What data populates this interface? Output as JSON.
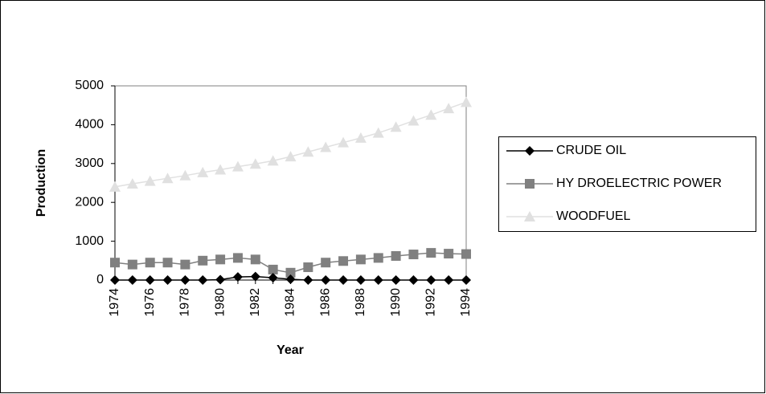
{
  "chart_data": {
    "type": "line",
    "x_label": "Year",
    "y_label": "Production",
    "x": [
      1974,
      1975,
      1976,
      1977,
      1978,
      1979,
      1980,
      1981,
      1982,
      1983,
      1984,
      1985,
      1986,
      1987,
      1988,
      1989,
      1990,
      1991,
      1992,
      1993,
      1994
    ],
    "xlim": [
      1974,
      1994
    ],
    "xticks": [
      1974,
      1976,
      1978,
      1980,
      1982,
      1984,
      1986,
      1988,
      1990,
      1992,
      1994
    ],
    "ylim": [
      0,
      5000
    ],
    "yticks": [
      0,
      1000,
      2000,
      3000,
      4000,
      5000
    ],
    "legend": "right",
    "series": [
      {
        "name": "CRUDE OIL",
        "color": "#000000",
        "marker": "diamond",
        "values": [
          0,
          0,
          0,
          0,
          0,
          0,
          10,
          80,
          90,
          60,
          20,
          0,
          0,
          0,
          0,
          0,
          0,
          0,
          0,
          0,
          0
        ]
      },
      {
        "name": "HY DROELECTRIC POWER",
        "color": "#808080",
        "marker": "square",
        "values": [
          450,
          400,
          450,
          450,
          400,
          500,
          530,
          570,
          530,
          270,
          190,
          330,
          450,
          490,
          530,
          570,
          620,
          660,
          700,
          680,
          670
        ]
      },
      {
        "name": "WOODFUEL",
        "color": "#e0e0e0",
        "marker": "triangle",
        "values": [
          2400,
          2480,
          2550,
          2620,
          2690,
          2770,
          2840,
          2920,
          2990,
          3070,
          3180,
          3300,
          3420,
          3540,
          3660,
          3790,
          3940,
          4100,
          4250,
          4420,
          4580
        ]
      }
    ]
  }
}
